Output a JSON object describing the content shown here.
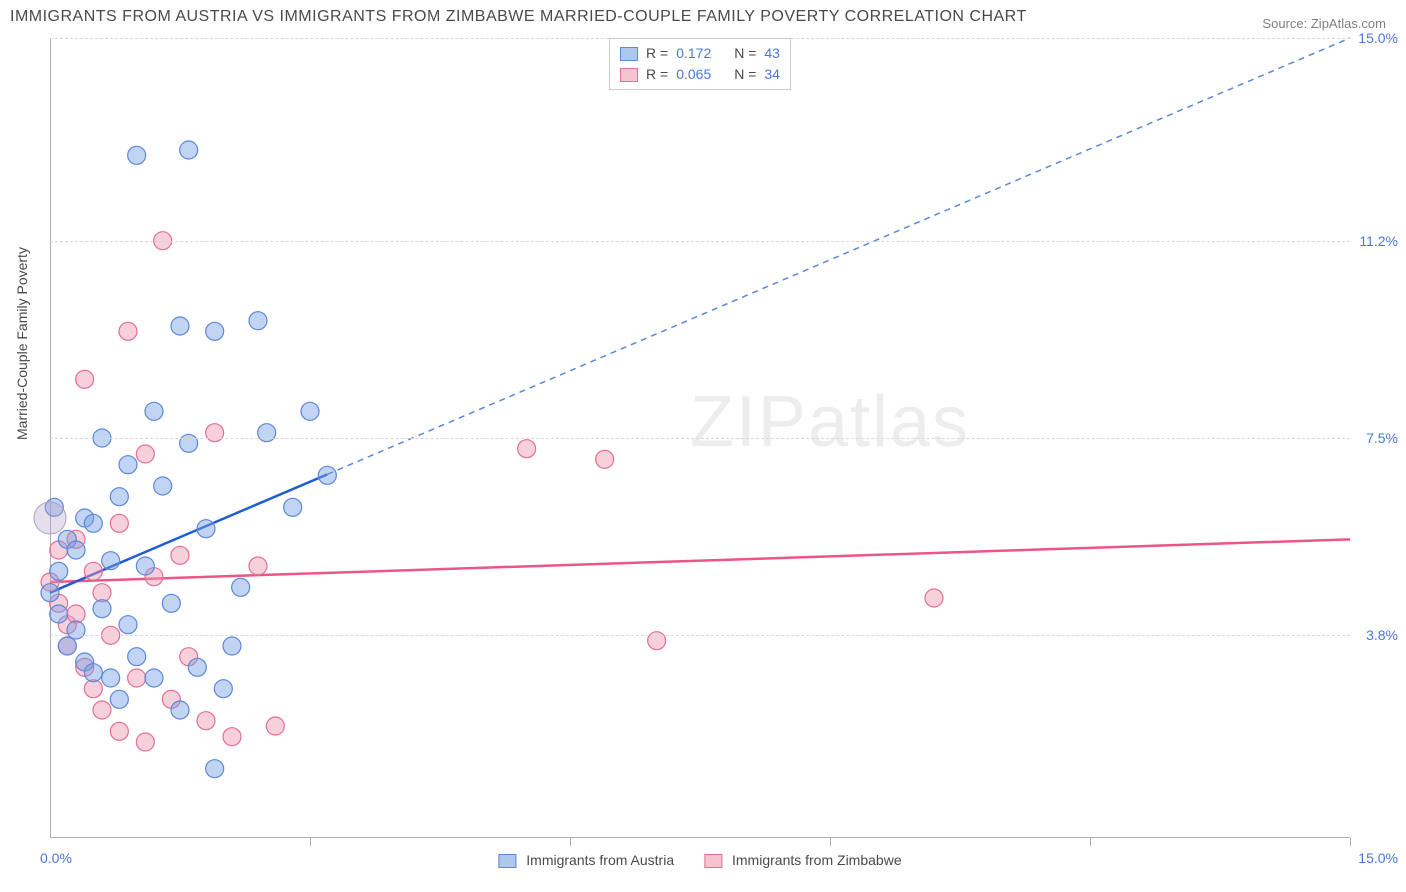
{
  "title": "IMMIGRANTS FROM AUSTRIA VS IMMIGRANTS FROM ZIMBABWE MARRIED-COUPLE FAMILY POVERTY CORRELATION CHART",
  "source_label": "Source:",
  "source_name": "ZipAtlas.com",
  "y_axis_label": "Married-Couple Family Poverty",
  "watermark": "ZIPatlas",
  "legend_bottom": {
    "series_a": "Immigrants from Austria",
    "series_b": "Immigrants from Zimbabwe"
  },
  "legend_top": {
    "r_label": "R =",
    "n_label": "N =",
    "series_a": {
      "r": "0.172",
      "n": "43"
    },
    "series_b": {
      "r": "0.065",
      "n": "34"
    }
  },
  "chart": {
    "type": "scatter",
    "xlim": [
      0,
      15
    ],
    "ylim": [
      0,
      15
    ],
    "x_origin_label": "0.0%",
    "x_max_label": "15.0%",
    "y_grid": [
      {
        "value": 3.8,
        "label": "3.8%"
      },
      {
        "value": 7.5,
        "label": "7.5%"
      },
      {
        "value": 11.2,
        "label": "11.2%"
      },
      {
        "value": 15.0,
        "label": "15.0%"
      }
    ],
    "y_top_grid": 15.0,
    "x_ticks": [
      0,
      3,
      6,
      9,
      12,
      15
    ],
    "background_color": "#ffffff",
    "grid_color": "#d8d8d8",
    "marker_radius": 9,
    "marker_stroke_width": 1.2,
    "series_a": {
      "name": "Immigrants from Austria",
      "fill": "rgba(120,160,228,0.45)",
      "stroke": "#5c88d8",
      "swatch_fill": "#aec7ed",
      "swatch_stroke": "#5c88d8",
      "trend_color": "#1e5cd6",
      "trend_dash_color": "#5c88d8",
      "trend": {
        "x1": 0,
        "y1": 4.6,
        "x2": 15,
        "y2": 15.0,
        "solid_to_x": 3.2
      },
      "points": [
        [
          0.0,
          4.6
        ],
        [
          0.1,
          5.0
        ],
        [
          0.1,
          4.2
        ],
        [
          0.2,
          5.6
        ],
        [
          0.2,
          3.6
        ],
        [
          0.3,
          3.9
        ],
        [
          0.3,
          5.4
        ],
        [
          0.4,
          3.3
        ],
        [
          0.4,
          6.0
        ],
        [
          0.5,
          5.9
        ],
        [
          0.5,
          3.1
        ],
        [
          0.6,
          7.5
        ],
        [
          0.6,
          4.3
        ],
        [
          0.7,
          3.0
        ],
        [
          0.7,
          5.2
        ],
        [
          0.8,
          6.4
        ],
        [
          0.8,
          2.6
        ],
        [
          0.9,
          4.0
        ],
        [
          0.9,
          7.0
        ],
        [
          1.0,
          12.8
        ],
        [
          1.0,
          3.4
        ],
        [
          1.1,
          5.1
        ],
        [
          1.2,
          8.0
        ],
        [
          1.2,
          3.0
        ],
        [
          1.3,
          6.6
        ],
        [
          1.4,
          4.4
        ],
        [
          1.5,
          9.6
        ],
        [
          1.5,
          2.4
        ],
        [
          1.6,
          7.4
        ],
        [
          1.6,
          12.9
        ],
        [
          1.7,
          3.2
        ],
        [
          1.8,
          5.8
        ],
        [
          1.9,
          1.3
        ],
        [
          1.9,
          9.5
        ],
        [
          2.0,
          2.8
        ],
        [
          2.1,
          3.6
        ],
        [
          2.2,
          4.7
        ],
        [
          2.4,
          9.7
        ],
        [
          2.5,
          7.6
        ],
        [
          2.8,
          6.2
        ],
        [
          3.0,
          8.0
        ],
        [
          3.2,
          6.8
        ],
        [
          0.05,
          6.2
        ]
      ]
    },
    "series_b": {
      "name": "Immigrants from Zimbabwe",
      "fill": "rgba(240,150,175,0.45)",
      "stroke": "#e36f93",
      "swatch_fill": "#f6c3d1",
      "swatch_stroke": "#e36f93",
      "trend_color": "#ea5687",
      "trend": {
        "x1": 0,
        "y1": 4.8,
        "x2": 15,
        "y2": 5.6
      },
      "points": [
        [
          0.0,
          4.8
        ],
        [
          0.1,
          4.4
        ],
        [
          0.1,
          5.4
        ],
        [
          0.2,
          4.0
        ],
        [
          0.2,
          3.6
        ],
        [
          0.3,
          5.6
        ],
        [
          0.3,
          4.2
        ],
        [
          0.4,
          3.2
        ],
        [
          0.4,
          8.6
        ],
        [
          0.5,
          2.8
        ],
        [
          0.5,
          5.0
        ],
        [
          0.6,
          4.6
        ],
        [
          0.6,
          2.4
        ],
        [
          0.7,
          3.8
        ],
        [
          0.8,
          5.9
        ],
        [
          0.8,
          2.0
        ],
        [
          0.9,
          9.5
        ],
        [
          1.0,
          3.0
        ],
        [
          1.1,
          7.2
        ],
        [
          1.1,
          1.8
        ],
        [
          1.2,
          4.9
        ],
        [
          1.3,
          11.2
        ],
        [
          1.4,
          2.6
        ],
        [
          1.5,
          5.3
        ],
        [
          1.6,
          3.4
        ],
        [
          1.8,
          2.2
        ],
        [
          1.9,
          7.6
        ],
        [
          2.1,
          1.9
        ],
        [
          2.4,
          5.1
        ],
        [
          2.6,
          2.1
        ],
        [
          5.5,
          7.3
        ],
        [
          6.4,
          7.1
        ],
        [
          7.0,
          3.7
        ],
        [
          10.2,
          4.5
        ]
      ]
    }
  }
}
